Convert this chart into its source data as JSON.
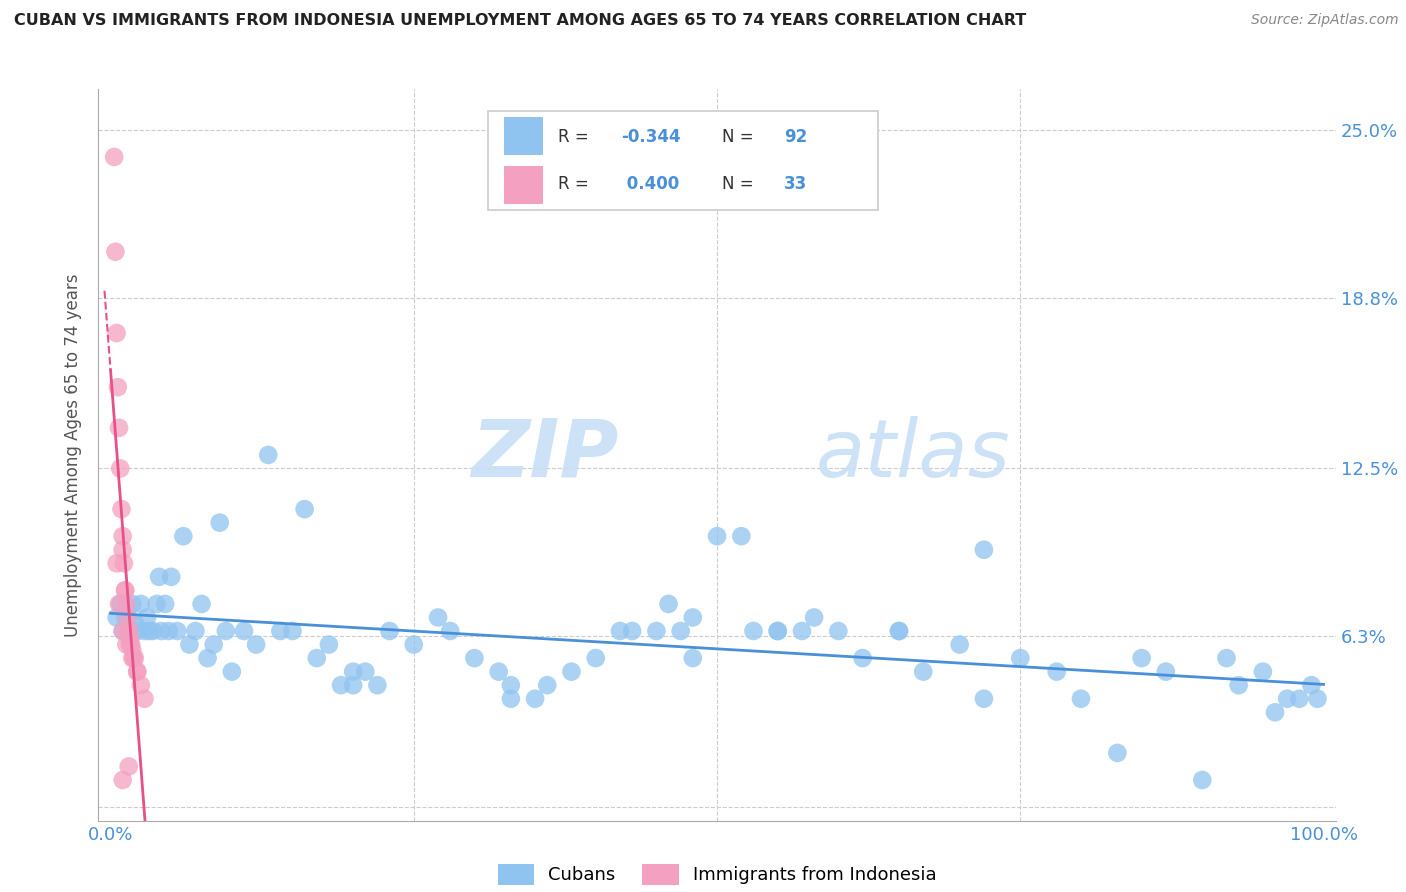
{
  "title": "CUBAN VS IMMIGRANTS FROM INDONESIA UNEMPLOYMENT AMONG AGES 65 TO 74 YEARS CORRELATION CHART",
  "source": "Source: ZipAtlas.com",
  "ylabel": "Unemployment Among Ages 65 to 74 years",
  "y_ticks": [
    0.0,
    0.063,
    0.125,
    0.188,
    0.25
  ],
  "y_tick_labels_right": [
    "",
    "6.3%",
    "12.5%",
    "18.8%",
    "25.0%"
  ],
  "x_ticks": [
    0.0,
    0.25,
    0.5,
    0.75,
    1.0
  ],
  "x_tick_labels": [
    "0.0%",
    "",
    "",
    "",
    "100.0%"
  ],
  "xlim": [
    -0.01,
    1.01
  ],
  "ylim": [
    -0.005,
    0.265
  ],
  "blue_color": "#90c4f0",
  "pink_color": "#f4a0c0",
  "blue_line_color": "#4a90d9",
  "pink_line_color": "#e8508a",
  "blue_R": -0.344,
  "blue_N": 92,
  "pink_R": 0.4,
  "pink_N": 33,
  "watermark_zip": "ZIP",
  "watermark_atlas": "atlas",
  "legend_label1": "Cubans",
  "legend_label2": "Immigrants from Indonesia",
  "blue_points_x": [
    0.005,
    0.008,
    0.01,
    0.012,
    0.015,
    0.015,
    0.018,
    0.02,
    0.022,
    0.025,
    0.028,
    0.03,
    0.032,
    0.035,
    0.038,
    0.04,
    0.042,
    0.045,
    0.048,
    0.05,
    0.055,
    0.06,
    0.065,
    0.07,
    0.075,
    0.08,
    0.085,
    0.09,
    0.095,
    0.1,
    0.11,
    0.12,
    0.13,
    0.14,
    0.15,
    0.16,
    0.17,
    0.18,
    0.19,
    0.2,
    0.21,
    0.22,
    0.23,
    0.25,
    0.27,
    0.28,
    0.3,
    0.32,
    0.33,
    0.35,
    0.36,
    0.38,
    0.4,
    0.42,
    0.43,
    0.45,
    0.46,
    0.47,
    0.48,
    0.5,
    0.52,
    0.53,
    0.55,
    0.57,
    0.58,
    0.6,
    0.62,
    0.65,
    0.67,
    0.7,
    0.72,
    0.75,
    0.78,
    0.8,
    0.83,
    0.85,
    0.87,
    0.9,
    0.92,
    0.93,
    0.95,
    0.96,
    0.97,
    0.98,
    0.99,
    0.995,
    0.55,
    0.48,
    0.33,
    0.2,
    0.65,
    0.72
  ],
  "blue_points_y": [
    0.07,
    0.075,
    0.065,
    0.07,
    0.065,
    0.07,
    0.075,
    0.068,
    0.065,
    0.075,
    0.065,
    0.07,
    0.065,
    0.065,
    0.075,
    0.085,
    0.065,
    0.075,
    0.065,
    0.085,
    0.065,
    0.1,
    0.06,
    0.065,
    0.075,
    0.055,
    0.06,
    0.105,
    0.065,
    0.05,
    0.065,
    0.06,
    0.13,
    0.065,
    0.065,
    0.11,
    0.055,
    0.06,
    0.045,
    0.045,
    0.05,
    0.045,
    0.065,
    0.06,
    0.07,
    0.065,
    0.055,
    0.05,
    0.045,
    0.04,
    0.045,
    0.05,
    0.055,
    0.065,
    0.065,
    0.065,
    0.075,
    0.065,
    0.055,
    0.1,
    0.1,
    0.065,
    0.065,
    0.065,
    0.07,
    0.065,
    0.055,
    0.065,
    0.05,
    0.06,
    0.04,
    0.055,
    0.05,
    0.04,
    0.02,
    0.055,
    0.05,
    0.01,
    0.055,
    0.045,
    0.05,
    0.035,
    0.04,
    0.04,
    0.045,
    0.04,
    0.065,
    0.07,
    0.04,
    0.05,
    0.065,
    0.095
  ],
  "pink_points_x": [
    0.003,
    0.004,
    0.005,
    0.006,
    0.007,
    0.008,
    0.009,
    0.01,
    0.011,
    0.012,
    0.013,
    0.014,
    0.015,
    0.016,
    0.017,
    0.018,
    0.01,
    0.012,
    0.015,
    0.018,
    0.02,
    0.022,
    0.005,
    0.007,
    0.01,
    0.013,
    0.016,
    0.019,
    0.022,
    0.025,
    0.028,
    0.01,
    0.015
  ],
  "pink_points_y": [
    0.24,
    0.205,
    0.175,
    0.155,
    0.14,
    0.125,
    0.11,
    0.1,
    0.09,
    0.08,
    0.075,
    0.07,
    0.065,
    0.062,
    0.06,
    0.058,
    0.095,
    0.08,
    0.065,
    0.055,
    0.055,
    0.05,
    0.09,
    0.075,
    0.065,
    0.06,
    0.06,
    0.055,
    0.05,
    0.045,
    0.04,
    0.01,
    0.015
  ]
}
